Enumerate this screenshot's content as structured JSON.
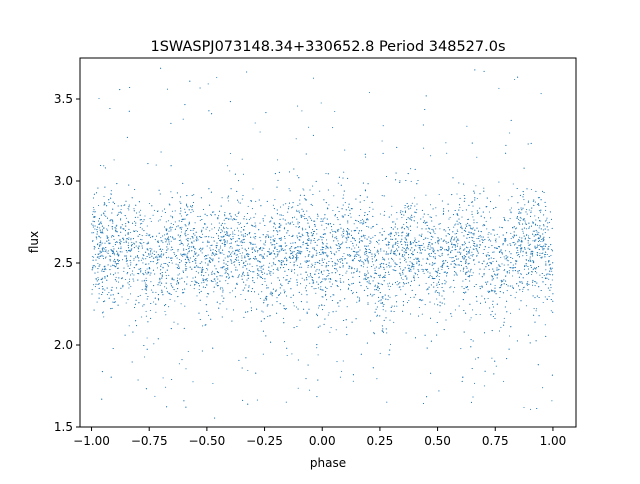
{
  "chart_data": {
    "type": "scatter",
    "title": "1SWASPJ073148.34+330652.8 Period 348527.0s",
    "xlabel": "phase",
    "ylabel": "flux",
    "xlim": [
      -1.05,
      1.1
    ],
    "ylim": [
      1.5,
      3.75
    ],
    "xticks": [
      -1.0,
      -0.75,
      -0.5,
      -0.25,
      0.0,
      0.25,
      0.5,
      0.75,
      1.0
    ],
    "xtick_labels": [
      "−1.00",
      "−0.75",
      "−0.50",
      "−0.25",
      "0.00",
      "0.25",
      "0.50",
      "0.75",
      "1.00"
    ],
    "yticks": [
      1.5,
      2.0,
      2.5,
      3.0,
      3.5
    ],
    "ytick_labels": [
      "1.5",
      "2.0",
      "2.5",
      "3.0",
      "3.5"
    ],
    "grid": false,
    "marker_color": "#1f77b4",
    "point_data": {
      "x_range": [
        -1.0,
        1.0
      ],
      "flux_center": 2.6,
      "flux_band": [
        2.3,
        3.0
      ],
      "flux_extremes": [
        1.55,
        3.7
      ],
      "dip_phases": [
        -0.75,
        -0.5,
        -0.25,
        0.0,
        0.25,
        0.5,
        0.75,
        1.0
      ]
    }
  }
}
